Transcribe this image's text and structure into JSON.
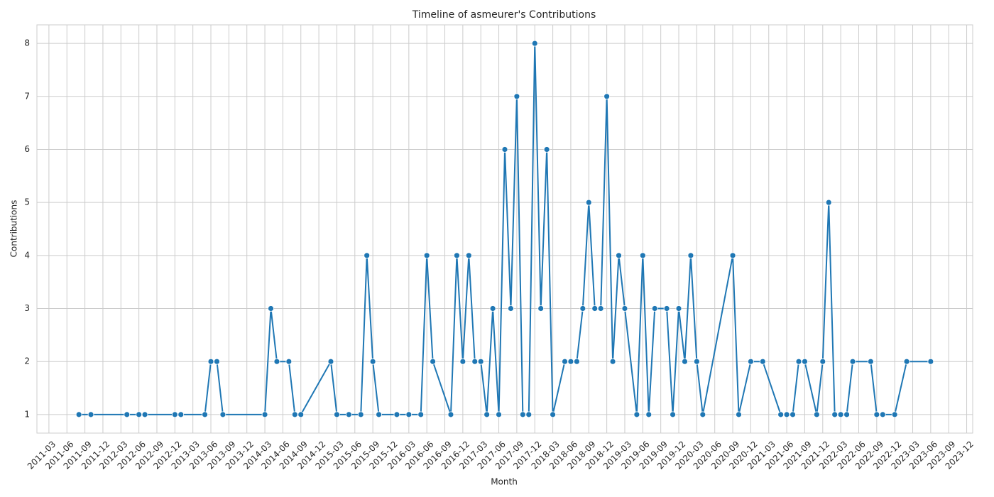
{
  "chart_data": {
    "type": "line",
    "title": "Timeline of asmeurer's Contributions",
    "x_label": "Month",
    "y_label": "Contributions",
    "x": [
      "2011-08",
      "2011-10",
      "2012-04",
      "2012-06",
      "2012-07",
      "2012-12",
      "2013-01",
      "2013-05",
      "2013-06",
      "2013-07",
      "2013-08",
      "2014-03",
      "2014-04",
      "2014-05",
      "2014-07",
      "2014-08",
      "2014-09",
      "2015-02",
      "2015-03",
      "2015-05",
      "2015-07",
      "2015-08",
      "2015-09",
      "2015-10",
      "2016-01",
      "2016-03",
      "2016-05",
      "2016-06",
      "2016-07",
      "2016-10",
      "2016-11",
      "2016-12",
      "2017-01",
      "2017-02",
      "2017-03",
      "2017-04",
      "2017-05",
      "2017-06",
      "2017-07",
      "2017-08",
      "2017-09",
      "2017-10",
      "2017-11",
      "2017-12",
      "2018-01",
      "2018-02",
      "2018-03",
      "2018-05",
      "2018-06",
      "2018-07",
      "2018-08",
      "2018-09",
      "2018-10",
      "2018-11",
      "2018-12",
      "2019-01",
      "2019-02",
      "2019-03",
      "2019-05",
      "2019-06",
      "2019-07",
      "2019-08",
      "2019-10",
      "2019-11",
      "2019-12",
      "2020-01",
      "2020-02",
      "2020-03",
      "2020-04",
      "2020-09",
      "2020-10",
      "2020-12",
      "2021-02",
      "2021-05",
      "2021-06",
      "2021-07",
      "2021-08",
      "2021-09",
      "2021-11",
      "2021-12",
      "2022-01",
      "2022-02",
      "2022-03",
      "2022-04",
      "2022-05",
      "2022-08",
      "2022-09",
      "2022-10",
      "2022-12",
      "2023-02",
      "2023-06"
    ],
    "values": [
      1,
      1,
      1,
      1,
      1,
      1,
      1,
      1,
      2,
      2,
      1,
      1,
      3,
      2,
      2,
      1,
      1,
      2,
      1,
      1,
      1,
      4,
      2,
      1,
      1,
      1,
      1,
      4,
      2,
      1,
      4,
      2,
      4,
      2,
      2,
      1,
      3,
      1,
      6,
      3,
      7,
      1,
      1,
      8,
      3,
      6,
      1,
      2,
      2,
      2,
      3,
      5,
      3,
      3,
      7,
      2,
      4,
      3,
      1,
      4,
      1,
      3,
      3,
      1,
      3,
      2,
      4,
      2,
      1,
      4,
      1,
      2,
      2,
      1,
      1,
      1,
      2,
      2,
      1,
      2,
      5,
      1,
      1,
      1,
      2,
      2,
      1,
      1,
      1,
      2,
      2
    ],
    "color": "#1f77b4",
    "xlim": [
      "2011-01",
      "2024-01"
    ],
    "xticks": [
      "2011-03",
      "2011-06",
      "2011-09",
      "2011-12",
      "2012-03",
      "2012-06",
      "2012-09",
      "2012-12",
      "2013-03",
      "2013-06",
      "2013-09",
      "2013-12",
      "2014-03",
      "2014-06",
      "2014-09",
      "2014-12",
      "2015-03",
      "2015-06",
      "2015-09",
      "2015-12",
      "2016-03",
      "2016-06",
      "2016-09",
      "2016-12",
      "2017-03",
      "2017-06",
      "2017-09",
      "2017-12",
      "2018-03",
      "2018-06",
      "2018-09",
      "2018-12",
      "2019-03",
      "2019-06",
      "2019-09",
      "2019-12",
      "2020-03",
      "2020-06",
      "2020-09",
      "2020-12",
      "2021-03",
      "2021-06",
      "2021-09",
      "2021-12",
      "2022-03",
      "2022-06",
      "2022-09",
      "2022-12",
      "2023-03",
      "2023-06",
      "2023-09",
      "2023-12"
    ],
    "ylim": [
      0.65,
      8.35
    ],
    "yticks": [
      1,
      2,
      3,
      4,
      5,
      6,
      7,
      8
    ],
    "grid": true
  }
}
